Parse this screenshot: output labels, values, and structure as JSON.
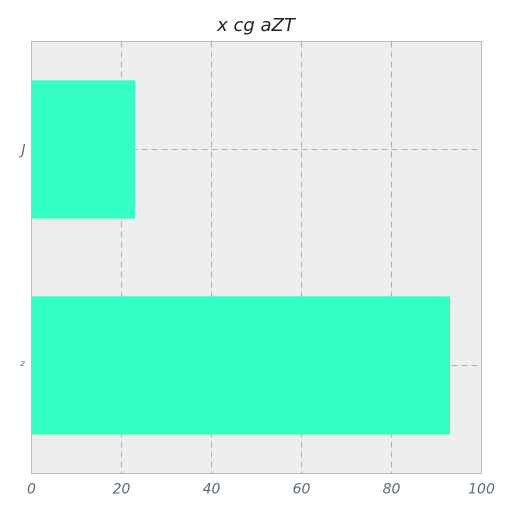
{
  "chart_data": {
    "type": "bar",
    "orientation": "horizontal",
    "title": "x  cg  aZT",
    "categories": [
      "J",
      "ᶻ"
    ],
    "values": [
      23,
      93
    ],
    "xlim": [
      0,
      100
    ],
    "xticks": [
      "0",
      "20",
      "40",
      "60",
      "80",
      "100"
    ],
    "xtick_values": [
      0,
      20,
      40,
      60,
      80,
      100
    ],
    "grid": true,
    "bar_color": "#33ffc4",
    "background_color": "#eeeeee"
  }
}
